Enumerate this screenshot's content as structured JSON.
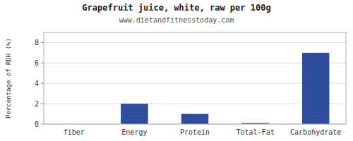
{
  "chart_data": {
    "type": "bar",
    "title": "Grapefruit juice, white, raw per 100g",
    "subtitle": "www.dietandfitnesstoday.com",
    "categories": [
      "fiber",
      "Energy",
      "Protein",
      "Total-Fat",
      "Carbohydrate"
    ],
    "values": [
      0.0,
      2.0,
      1.0,
      0.1,
      7.0
    ],
    "color": "#2e4d9e",
    "ylabel": "Percentage of RDH (%)",
    "ylim": [
      0,
      9
    ],
    "yticks": [
      0,
      2,
      4,
      6,
      8
    ],
    "grid": true
  }
}
